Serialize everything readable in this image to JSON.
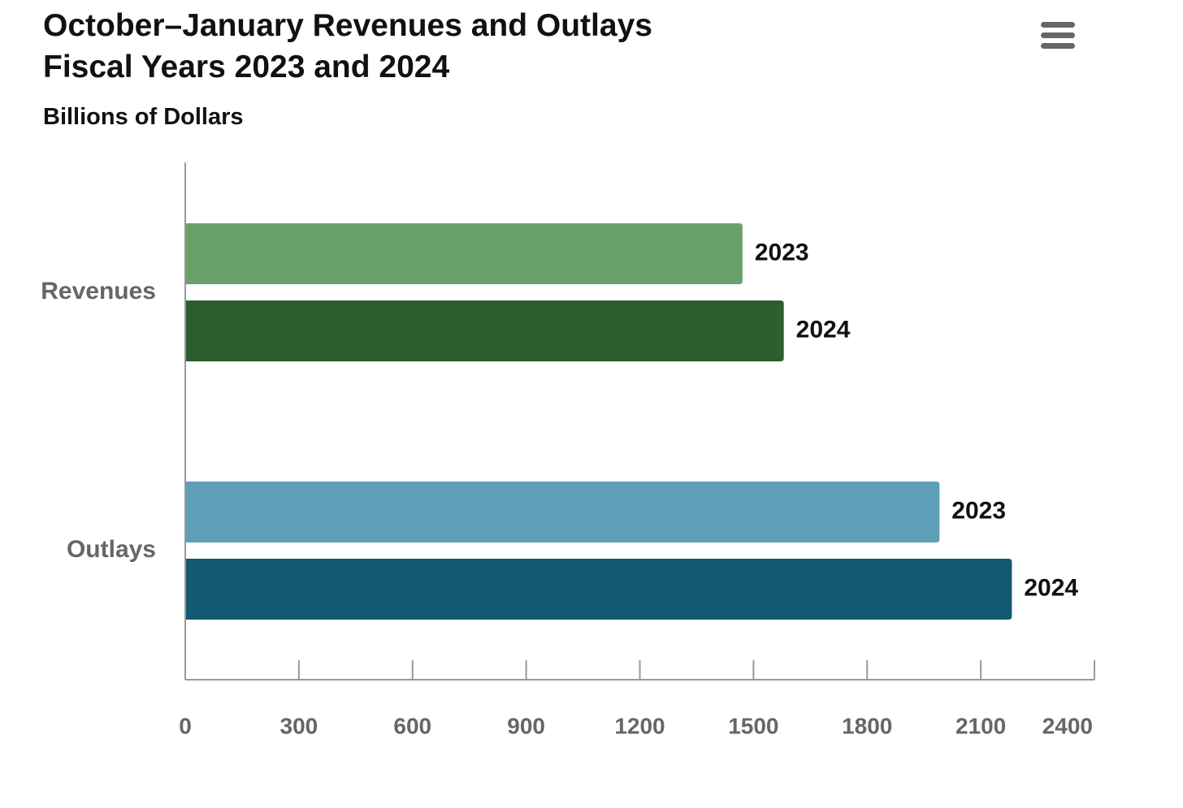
{
  "menu": {
    "icon": "hamburger-menu-icon"
  },
  "chart_data": {
    "type": "bar",
    "orientation": "horizontal",
    "title": [
      "October–January Revenues and Outlays",
      "Fiscal Years 2023 and 2024"
    ],
    "subtitle": "Billions of Dollars",
    "categories": [
      "Revenues",
      "Outlays"
    ],
    "bars": [
      {
        "category": "Revenues",
        "label": "2023",
        "value": 1471,
        "color": "#6aa06a"
      },
      {
        "category": "Revenues",
        "label": "2024",
        "value": 1580,
        "color": "#2e5e2e"
      },
      {
        "category": "Outlays",
        "label": "2023",
        "value": 1991,
        "color": "#5f9eb7"
      },
      {
        "category": "Outlays",
        "label": "2024",
        "value": 2182,
        "color": "#115a70"
      }
    ],
    "xlim": [
      0,
      2400
    ],
    "xticks": [
      0,
      300,
      600,
      900,
      1200,
      1500,
      1800,
      2100,
      2400
    ],
    "grid": false,
    "legend": "none",
    "axis_color": "#999999"
  }
}
